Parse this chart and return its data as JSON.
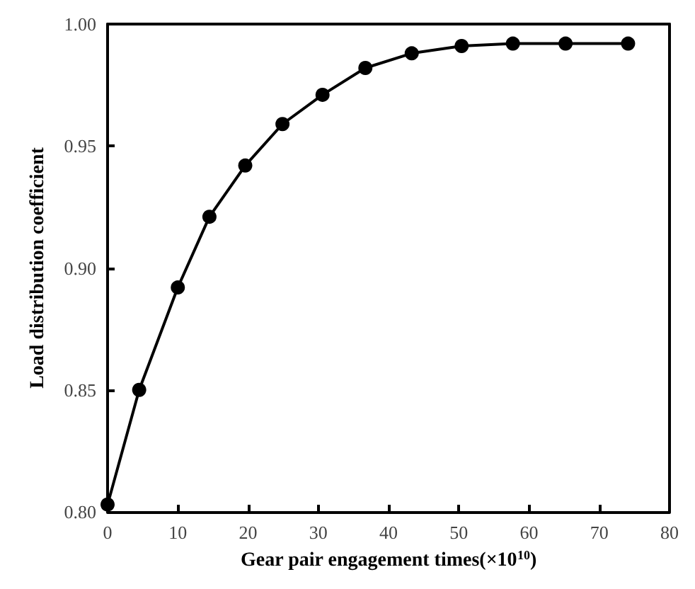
{
  "chart_data": {
    "type": "line",
    "xlabel": "Gear pair engagement times(×10$^{10}$)",
    "ylabel": "Load distribution coefficient",
    "x": [
      0,
      4.5,
      10,
      14.5,
      19.6,
      24.9,
      30.6,
      36.7,
      43.3,
      50.4,
      57.7,
      65.2,
      74.1
    ],
    "series": [
      {
        "color": "#000000",
        "values": [
          0.803,
          0.85,
          0.892,
          0.921,
          0.942,
          0.959,
          0.971,
          0.982,
          0.988,
          0.991,
          0.992,
          0.992,
          0.992
        ]
      }
    ],
    "xlim": [
      0,
      80
    ],
    "xticks": [
      0,
      10,
      20,
      30,
      40,
      50,
      60,
      70,
      80
    ],
    "ylim": [
      0.8,
      1.0
    ],
    "yticks": [
      {
        "value": 0.8,
        "label": "0.80"
      },
      {
        "value": 0.85,
        "label": "0.85"
      },
      {
        "value": 0.9,
        "label": "0.90"
      },
      {
        "value": 0.95,
        "label": "0.95"
      },
      {
        "value": 1.0,
        "label": "1.00"
      }
    ],
    "marker": "circle",
    "line_style": "solid"
  }
}
